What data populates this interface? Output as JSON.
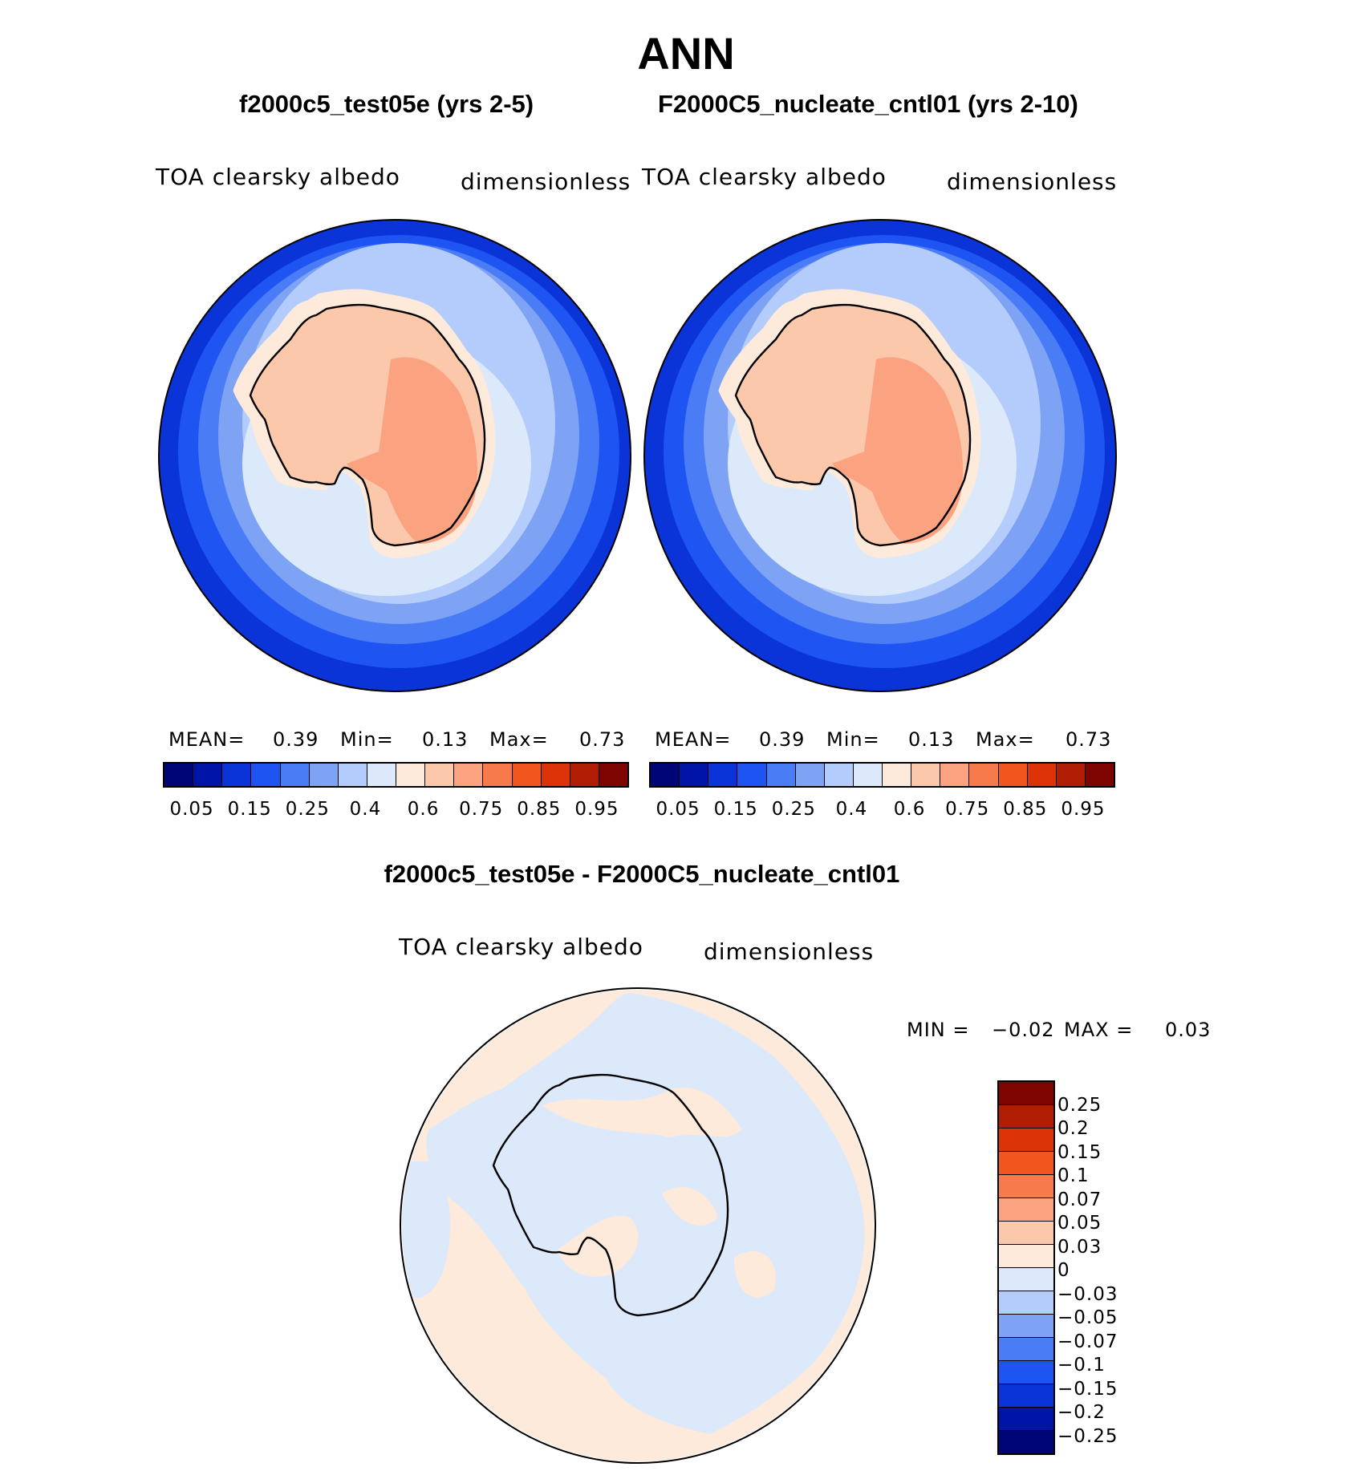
{
  "title": "ANN",
  "panels": [
    {
      "case_label": "f2000c5_test05e (yrs 2-5)",
      "variable": "TOA clearsky albedo",
      "units": "dimensionless",
      "mean_label": "MEAN=",
      "mean": "0.39",
      "min_label": "Min=",
      "min": "0.13",
      "max_label": "Max=",
      "max": "0.73"
    },
    {
      "case_label": "F2000C5_nucleate_cntl01 (yrs 2-10)",
      "variable": "TOA clearsky albedo",
      "units": "dimensionless",
      "mean_label": "MEAN=",
      "mean": "0.39",
      "min_label": "Min=",
      "min": "0.13",
      "max_label": "Max=",
      "max": "0.73"
    }
  ],
  "diff_panel": {
    "title": "f2000c5_test05e - F2000C5_nucleate_cntl01",
    "variable": "TOA clearsky albedo",
    "units": "dimensionless",
    "min_label": "MIN =",
    "min": "−0.02",
    "max_label": "MAX =",
    "max": "0.03"
  },
  "colorbar_abs": {
    "colors": [
      "#000575",
      "#0015A8",
      "#0A34D8",
      "#1E55F2",
      "#4A7CF5",
      "#7EA3F5",
      "#B4CCFB",
      "#DCE9FB",
      "#FDEADB",
      "#FCC8AC",
      "#FBA381",
      "#F77A4D",
      "#F2561F",
      "#DC3408",
      "#B01D02",
      "#7E0402"
    ],
    "ticks": [
      "0.05",
      "0.15",
      "0.25",
      "0.4",
      "0.6",
      "0.75",
      "0.85",
      "0.95"
    ]
  },
  "colorbar_diff": {
    "colors": [
      "#7E0402",
      "#B01D02",
      "#DC3408",
      "#F2561F",
      "#F77A4D",
      "#FBA381",
      "#FCC8AC",
      "#FDEADB",
      "#DCE9FB",
      "#B4CCFB",
      "#7EA3F5",
      "#4A7CF5",
      "#1E55F2",
      "#0A34D8",
      "#0015A8",
      "#000575"
    ],
    "ticks": [
      "0.25",
      "0.2",
      "0.15",
      "0.1",
      "0.07",
      "0.05",
      "0.03",
      "0",
      "−0.03",
      "−0.05",
      "−0.07",
      "−0.1",
      "−0.15",
      "−0.2",
      "−0.25"
    ]
  }
}
